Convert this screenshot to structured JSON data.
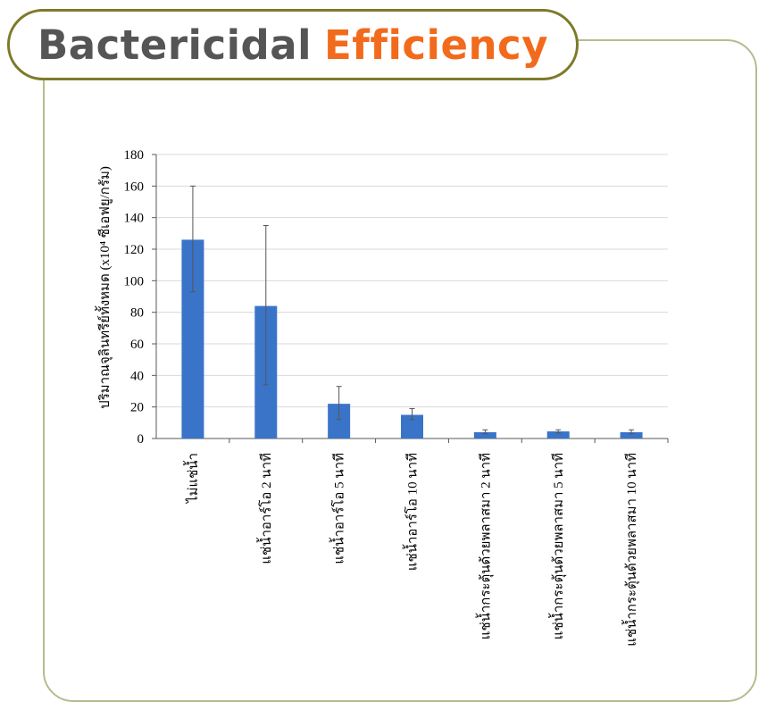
{
  "header": {
    "title_part1": "Bactericidal",
    "title_part2": "Efficiency"
  },
  "colors": {
    "title_gray": "#555555",
    "title_orange": "#f26a1b",
    "bar": "#3a74c9",
    "grid": "#d9d9d9"
  },
  "chart_data": {
    "type": "bar",
    "ylabel": "ปริมาณจุลินทรีย์ทั้งหมด (x10⁴ ซีเอฟยู/กรัม)",
    "ylim": [
      0,
      180
    ],
    "yticks": [
      0,
      20,
      40,
      60,
      80,
      100,
      120,
      140,
      160,
      180
    ],
    "grid": true,
    "categories": [
      "ไม่แช่น้ำ",
      "แช่น้ำอาร์โอ 2 นาที",
      "แช่น้ำอาร์โอ 5 นาที",
      "แช่น้ำอาร์โอ 10 นาที",
      "แช่น้ำกระตุ้นด้วยพลาสมา 2 นาที",
      "แช่น้ำกระตุ้นด้วยพลาสมา 5 นาที",
      "แช่น้ำกระตุ้นด้วยพลาสมา 10 นาที"
    ],
    "values": [
      126,
      84,
      22,
      15,
      4,
      4.5,
      4
    ],
    "error_low": [
      93,
      34,
      12,
      12,
      3,
      3.5,
      3
    ],
    "error_high": [
      160,
      135,
      33,
      19,
      5.5,
      5.5,
      5.5
    ]
  }
}
